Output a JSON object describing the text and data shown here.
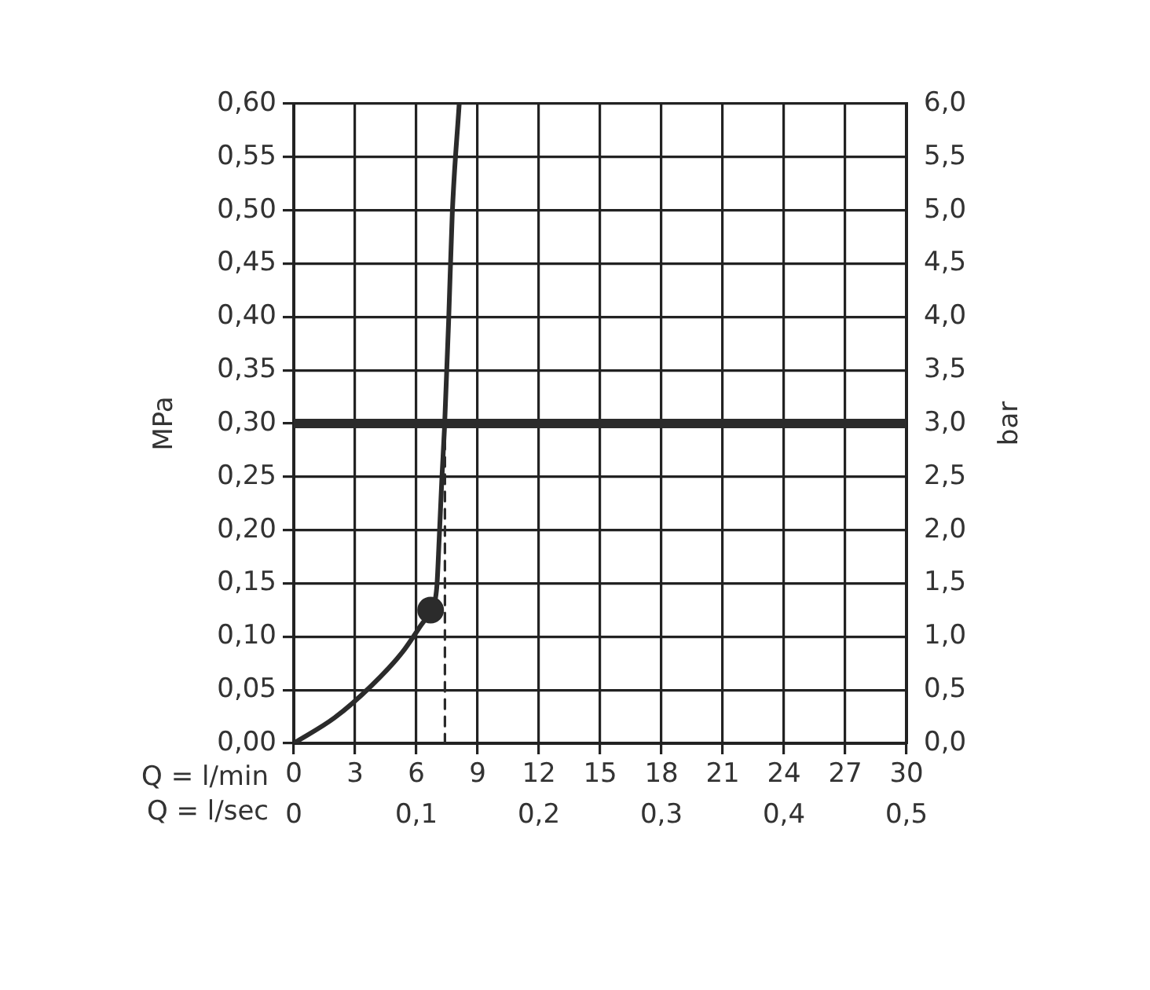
{
  "chart_data": {
    "type": "line",
    "xlabel": "Q = l/min",
    "x2label": "Q = l/sec",
    "ylabel": "MPa",
    "y2label": "bar",
    "xlim": [
      0,
      30
    ],
    "xticks": [
      0,
      3,
      6,
      9,
      12,
      15,
      18,
      21,
      24,
      27,
      30
    ],
    "x2lim": [
      0,
      0.5
    ],
    "x2ticks": [
      0,
      {
        "value": 0.1,
        "label": "0,1"
      },
      {
        "value": 0.2,
        "label": "0,2"
      },
      {
        "value": 0.3,
        "label": "0,3"
      },
      {
        "value": 0.4,
        "label": "0,4"
      },
      {
        "value": 0.5,
        "label": "0,5"
      }
    ],
    "ylim": [
      0,
      0.6
    ],
    "yticks": [
      {
        "value": 0,
        "label": "0,00"
      },
      {
        "value": 0.05,
        "label": "0,05"
      },
      {
        "value": 0.1,
        "label": "0,10"
      },
      {
        "value": 0.15,
        "label": "0,15"
      },
      {
        "value": 0.2,
        "label": "0,20"
      },
      {
        "value": 0.25,
        "label": "0,25"
      },
      {
        "value": 0.3,
        "label": "0,30"
      },
      {
        "value": 0.35,
        "label": "0,35"
      },
      {
        "value": 0.4,
        "label": "0,40"
      },
      {
        "value": 0.45,
        "label": "0,45"
      },
      {
        "value": 0.5,
        "label": "0,50"
      },
      {
        "value": 0.55,
        "label": "0,55"
      },
      {
        "value": 0.6,
        "label": "0,60"
      }
    ],
    "y2lim": [
      0,
      6
    ],
    "y2ticks": [
      {
        "value": 0,
        "label": "0,0"
      },
      {
        "value": 0.5,
        "label": "0,5"
      },
      {
        "value": 1,
        "label": "1,0"
      },
      {
        "value": 1.5,
        "label": "1,5"
      },
      {
        "value": 2,
        "label": "2,0"
      },
      {
        "value": 2.5,
        "label": "2,5"
      },
      {
        "value": 3,
        "label": "3,0"
      },
      {
        "value": 3.5,
        "label": "3,5"
      },
      {
        "value": 4,
        "label": "4,0"
      },
      {
        "value": 4.5,
        "label": "4,5"
      },
      {
        "value": 5,
        "label": "5,0"
      },
      {
        "value": 5.5,
        "label": "5,5"
      },
      {
        "value": 6,
        "label": "6,0"
      }
    ],
    "grid": true,
    "legend": false,
    "series": [
      {
        "type": "line",
        "color": "#2b2b2b",
        "marker": "none",
        "line_style": "solid",
        "x": [
          0,
          2,
          3.8,
          5.3,
          6.2,
          6.7,
          7,
          7.12,
          7.25,
          7.38,
          7.58,
          7.76,
          8.1
        ],
        "values": [
          0,
          0.024,
          0.054,
          0.085,
          0.11,
          0.125,
          0.146,
          0.192,
          0.248,
          0.296,
          0.395,
          0.497,
          0.6
        ]
      },
      {
        "type": "scatter",
        "color": "#2b2b2b",
        "marker": "circle",
        "x": [
          6.7
        ],
        "values": [
          0.125
        ]
      },
      {
        "type": "line",
        "color": "#2b2b2b",
        "marker": "none",
        "line_style": "dashed",
        "x": [
          7.4,
          7.4
        ],
        "values": [
          0,
          0.3
        ]
      }
    ],
    "ref_lines": [
      {
        "axis": "y",
        "value": 0.3,
        "color": "#2b2b2b"
      }
    ]
  }
}
